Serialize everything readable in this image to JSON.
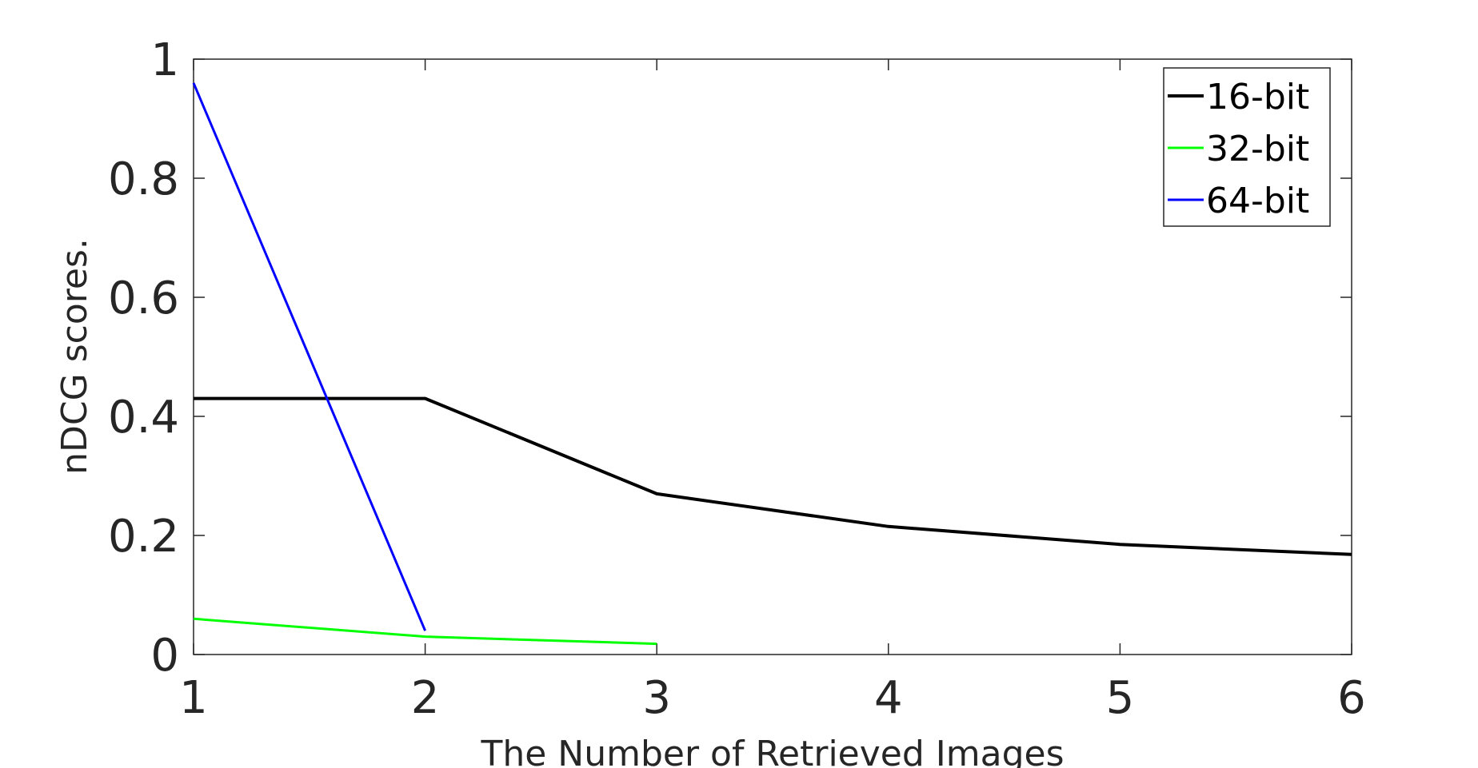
{
  "chart_data": {
    "type": "line",
    "title": "",
    "xlabel": "The Number of Retrieved Images",
    "ylabel": "nDCG scores.",
    "xlim": [
      1,
      6
    ],
    "ylim": [
      0,
      1
    ],
    "x_ticks": [
      "1",
      "2",
      "3",
      "4",
      "5",
      "6"
    ],
    "y_ticks": [
      "0",
      "0.2",
      "0.4",
      "0.6",
      "0.8",
      "1"
    ],
    "grid": false,
    "legend_position": "top-right",
    "series": [
      {
        "name": "16-bit",
        "color": "#000000",
        "x": [
          1,
          2,
          3,
          4,
          5,
          6
        ],
        "y": [
          0.43,
          0.43,
          0.27,
          0.215,
          0.185,
          0.168
        ]
      },
      {
        "name": "32-bit",
        "color": "#00ff00",
        "x": [
          1,
          2,
          3
        ],
        "y": [
          0.06,
          0.03,
          0.018
        ]
      },
      {
        "name": "64-bit",
        "color": "#0000ff",
        "x": [
          1,
          2
        ],
        "y": [
          0.96,
          0.04
        ]
      }
    ]
  }
}
